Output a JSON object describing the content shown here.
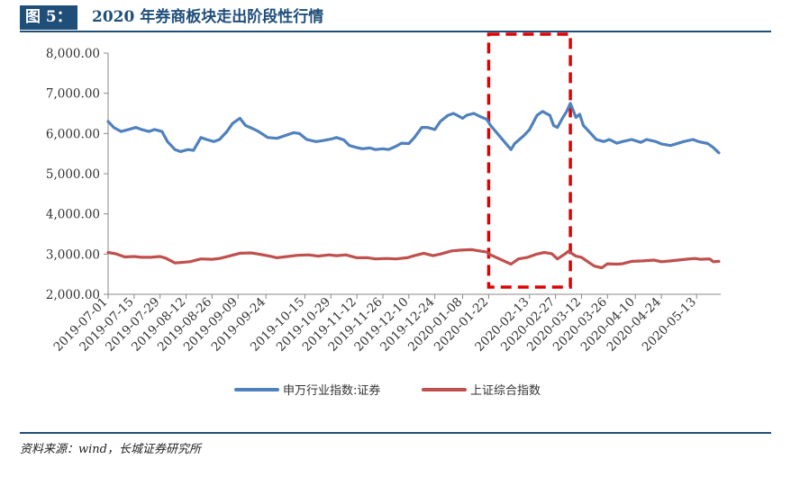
{
  "title": {
    "tag": "图 5：",
    "text": "2020 年券商板块走出阶段性行情"
  },
  "source": "资料来源：wind，长城证券研究所",
  "chart_data": {
    "type": "line",
    "title": "2020 年券商板块走出阶段性行情",
    "xlabel": "",
    "ylabel": "",
    "ylim": [
      2000,
      8000
    ],
    "y_ticks": [
      "2,000.00",
      "3,000.00",
      "4,000.00",
      "5,000.00",
      "6,000.00",
      "7,000.00",
      "8,000.00"
    ],
    "x_tick_labels": [
      "2019-07-01",
      "2019-07-15",
      "2019-07-29",
      "2019-08-12",
      "2019-08-26",
      "2019-09-09",
      "2019-09-24",
      "2019-10-15",
      "2019-10-29",
      "2019-11-12",
      "2019-11-26",
      "2019-12-10",
      "2019-12-24",
      "2020-01-08",
      "2020-01-22",
      "2020-02-13",
      "2020-02-27",
      "2020-03-12",
      "2020-03-26",
      "2020-04-10",
      "2020-04-24",
      "2020-05-13"
    ],
    "grid": false,
    "legend_position": "bottom",
    "highlight_range": [
      "2020-01-22",
      "2020-03-06"
    ],
    "series": [
      {
        "name": "申万行业指数:证券",
        "color": "#4f81bd",
        "points": [
          [
            "2019-07-01",
            6300
          ],
          [
            "2019-07-04",
            6150
          ],
          [
            "2019-07-08",
            6050
          ],
          [
            "2019-07-12",
            6100
          ],
          [
            "2019-07-16",
            6150
          ],
          [
            "2019-07-19",
            6100
          ],
          [
            "2019-07-23",
            6050
          ],
          [
            "2019-07-26",
            6100
          ],
          [
            "2019-07-30",
            6050
          ],
          [
            "2019-08-02",
            5800
          ],
          [
            "2019-08-06",
            5600
          ],
          [
            "2019-08-09",
            5550
          ],
          [
            "2019-08-13",
            5600
          ],
          [
            "2019-08-16",
            5580
          ],
          [
            "2019-08-20",
            5900
          ],
          [
            "2019-08-23",
            5850
          ],
          [
            "2019-08-27",
            5800
          ],
          [
            "2019-08-30",
            5850
          ],
          [
            "2019-09-03",
            6050
          ],
          [
            "2019-09-06",
            6250
          ],
          [
            "2019-09-10",
            6380
          ],
          [
            "2019-09-13",
            6200
          ],
          [
            "2019-09-17",
            6120
          ],
          [
            "2019-09-20",
            6050
          ],
          [
            "2019-09-25",
            5900
          ],
          [
            "2019-09-30",
            5880
          ],
          [
            "2019-10-09",
            6020
          ],
          [
            "2019-10-12",
            6000
          ],
          [
            "2019-10-16",
            5850
          ],
          [
            "2019-10-21",
            5800
          ],
          [
            "2019-10-24",
            5820
          ],
          [
            "2019-10-29",
            5860
          ],
          [
            "2019-11-01",
            5900
          ],
          [
            "2019-11-05",
            5840
          ],
          [
            "2019-11-08",
            5700
          ],
          [
            "2019-11-12",
            5650
          ],
          [
            "2019-11-15",
            5620
          ],
          [
            "2019-11-19",
            5640
          ],
          [
            "2019-11-22",
            5600
          ],
          [
            "2019-11-26",
            5620
          ],
          [
            "2019-11-29",
            5600
          ],
          [
            "2019-12-03",
            5680
          ],
          [
            "2019-12-06",
            5760
          ],
          [
            "2019-12-10",
            5750
          ],
          [
            "2019-12-13",
            5900
          ],
          [
            "2019-12-17",
            6150
          ],
          [
            "2019-12-20",
            6150
          ],
          [
            "2019-12-24",
            6100
          ],
          [
            "2019-12-27",
            6300
          ],
          [
            "2019-12-31",
            6450
          ],
          [
            "2020-01-03",
            6500
          ],
          [
            "2020-01-08",
            6380
          ],
          [
            "2020-01-10",
            6450
          ],
          [
            "2020-01-14",
            6500
          ],
          [
            "2020-01-17",
            6430
          ],
          [
            "2020-01-21",
            6350
          ],
          [
            "2020-01-23",
            6200
          ],
          [
            "2020-02-03",
            5600
          ],
          [
            "2020-02-05",
            5750
          ],
          [
            "2020-02-10",
            5950
          ],
          [
            "2020-02-13",
            6100
          ],
          [
            "2020-02-17",
            6450
          ],
          [
            "2020-02-20",
            6550
          ],
          [
            "2020-02-24",
            6450
          ],
          [
            "2020-02-26",
            6200
          ],
          [
            "2020-02-28",
            6150
          ],
          [
            "2020-03-02",
            6400
          ],
          [
            "2020-03-04",
            6550
          ],
          [
            "2020-03-06",
            6750
          ],
          [
            "2020-03-09",
            6400
          ],
          [
            "2020-03-11",
            6480
          ],
          [
            "2020-03-13",
            6200
          ],
          [
            "2020-03-17",
            6000
          ],
          [
            "2020-03-20",
            5850
          ],
          [
            "2020-03-24",
            5800
          ],
          [
            "2020-03-27",
            5850
          ],
          [
            "2020-03-31",
            5760
          ],
          [
            "2020-04-03",
            5800
          ],
          [
            "2020-04-08",
            5850
          ],
          [
            "2020-04-13",
            5780
          ],
          [
            "2020-04-16",
            5850
          ],
          [
            "2020-04-21",
            5800
          ],
          [
            "2020-04-24",
            5740
          ],
          [
            "2020-04-29",
            5700
          ],
          [
            "2020-05-06",
            5800
          ],
          [
            "2020-05-11",
            5850
          ],
          [
            "2020-05-14",
            5800
          ],
          [
            "2020-05-19",
            5750
          ],
          [
            "2020-05-22",
            5650
          ],
          [
            "2020-05-25",
            5520
          ]
        ]
      },
      {
        "name": "上证综合指数",
        "color": "#c0504d",
        "points": [
          [
            "2019-07-01",
            3040
          ],
          [
            "2019-07-05",
            3010
          ],
          [
            "2019-07-10",
            2930
          ],
          [
            "2019-07-15",
            2940
          ],
          [
            "2019-07-19",
            2920
          ],
          [
            "2019-07-24",
            2920
          ],
          [
            "2019-07-29",
            2940
          ],
          [
            "2019-08-01",
            2900
          ],
          [
            "2019-08-06",
            2780
          ],
          [
            "2019-08-09",
            2790
          ],
          [
            "2019-08-14",
            2810
          ],
          [
            "2019-08-20",
            2880
          ],
          [
            "2019-08-26",
            2870
          ],
          [
            "2019-08-30",
            2890
          ],
          [
            "2019-09-05",
            2960
          ],
          [
            "2019-09-10",
            3020
          ],
          [
            "2019-09-16",
            3030
          ],
          [
            "2019-09-20",
            3000
          ],
          [
            "2019-09-26",
            2950
          ],
          [
            "2019-09-30",
            2910
          ],
          [
            "2019-10-11",
            2970
          ],
          [
            "2019-10-17",
            2980
          ],
          [
            "2019-10-22",
            2950
          ],
          [
            "2019-10-28",
            2980
          ],
          [
            "2019-11-01",
            2960
          ],
          [
            "2019-11-06",
            2980
          ],
          [
            "2019-11-12",
            2910
          ],
          [
            "2019-11-18",
            2910
          ],
          [
            "2019-11-22",
            2880
          ],
          [
            "2019-11-28",
            2890
          ],
          [
            "2019-12-03",
            2880
          ],
          [
            "2019-12-09",
            2910
          ],
          [
            "2019-12-13",
            2960
          ],
          [
            "2019-12-18",
            3020
          ],
          [
            "2019-12-23",
            2960
          ],
          [
            "2019-12-27",
            3000
          ],
          [
            "2020-01-02",
            3080
          ],
          [
            "2020-01-07",
            3100
          ],
          [
            "2020-01-13",
            3110
          ],
          [
            "2020-01-17",
            3080
          ],
          [
            "2020-01-21",
            3050
          ],
          [
            "2020-01-23",
            2980
          ],
          [
            "2020-02-03",
            2750
          ],
          [
            "2020-02-07",
            2880
          ],
          [
            "2020-02-12",
            2920
          ],
          [
            "2020-02-17",
            3000
          ],
          [
            "2020-02-21",
            3040
          ],
          [
            "2020-02-25",
            3010
          ],
          [
            "2020-02-28",
            2880
          ],
          [
            "2020-03-03",
            3000
          ],
          [
            "2020-03-05",
            3070
          ],
          [
            "2020-03-09",
            2950
          ],
          [
            "2020-03-12",
            2920
          ],
          [
            "2020-03-16",
            2790
          ],
          [
            "2020-03-19",
            2700
          ],
          [
            "2020-03-23",
            2660
          ],
          [
            "2020-03-26",
            2760
          ],
          [
            "2020-03-31",
            2750
          ],
          [
            "2020-04-03",
            2760
          ],
          [
            "2020-04-08",
            2820
          ],
          [
            "2020-04-14",
            2830
          ],
          [
            "2020-04-20",
            2850
          ],
          [
            "2020-04-24",
            2810
          ],
          [
            "2020-04-29",
            2830
          ],
          [
            "2020-05-07",
            2870
          ],
          [
            "2020-05-12",
            2890
          ],
          [
            "2020-05-15",
            2870
          ],
          [
            "2020-05-20",
            2880
          ],
          [
            "2020-05-22",
            2810
          ],
          [
            "2020-05-25",
            2820
          ]
        ]
      }
    ]
  }
}
